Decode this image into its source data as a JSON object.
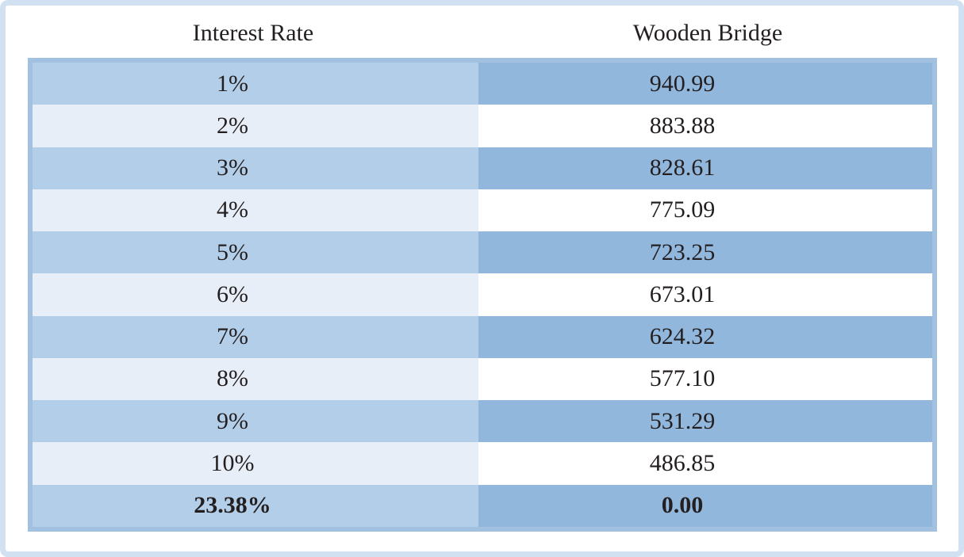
{
  "table": {
    "columns": [
      "Interest Rate",
      "Wooden Bridge"
    ],
    "rows": [
      {
        "rate": "1%",
        "value": "940.99",
        "bold": false
      },
      {
        "rate": "2%",
        "value": "883.88",
        "bold": false
      },
      {
        "rate": "3%",
        "value": "828.61",
        "bold": false
      },
      {
        "rate": "4%",
        "value": "775.09",
        "bold": false
      },
      {
        "rate": "5%",
        "value": "723.25",
        "bold": false
      },
      {
        "rate": "6%",
        "value": "673.01",
        "bold": false
      },
      {
        "rate": "7%",
        "value": "624.32",
        "bold": false
      },
      {
        "rate": "8%",
        "value": "577.10",
        "bold": false
      },
      {
        "rate": "9%",
        "value": "531.29",
        "bold": false
      },
      {
        "rate": "10%",
        "value": "486.85",
        "bold": false
      },
      {
        "rate": "23.38%",
        "value": "0.00",
        "bold": true
      }
    ]
  },
  "colors": {
    "row_blue": "#92b7dc",
    "row_light_blue": "#b3cee8",
    "row_pale": "#e8eef7",
    "row_white": "#ffffff",
    "table_border": "#a2c0e0",
    "card_border": "#d2e1f1",
    "text": "#231f20"
  }
}
